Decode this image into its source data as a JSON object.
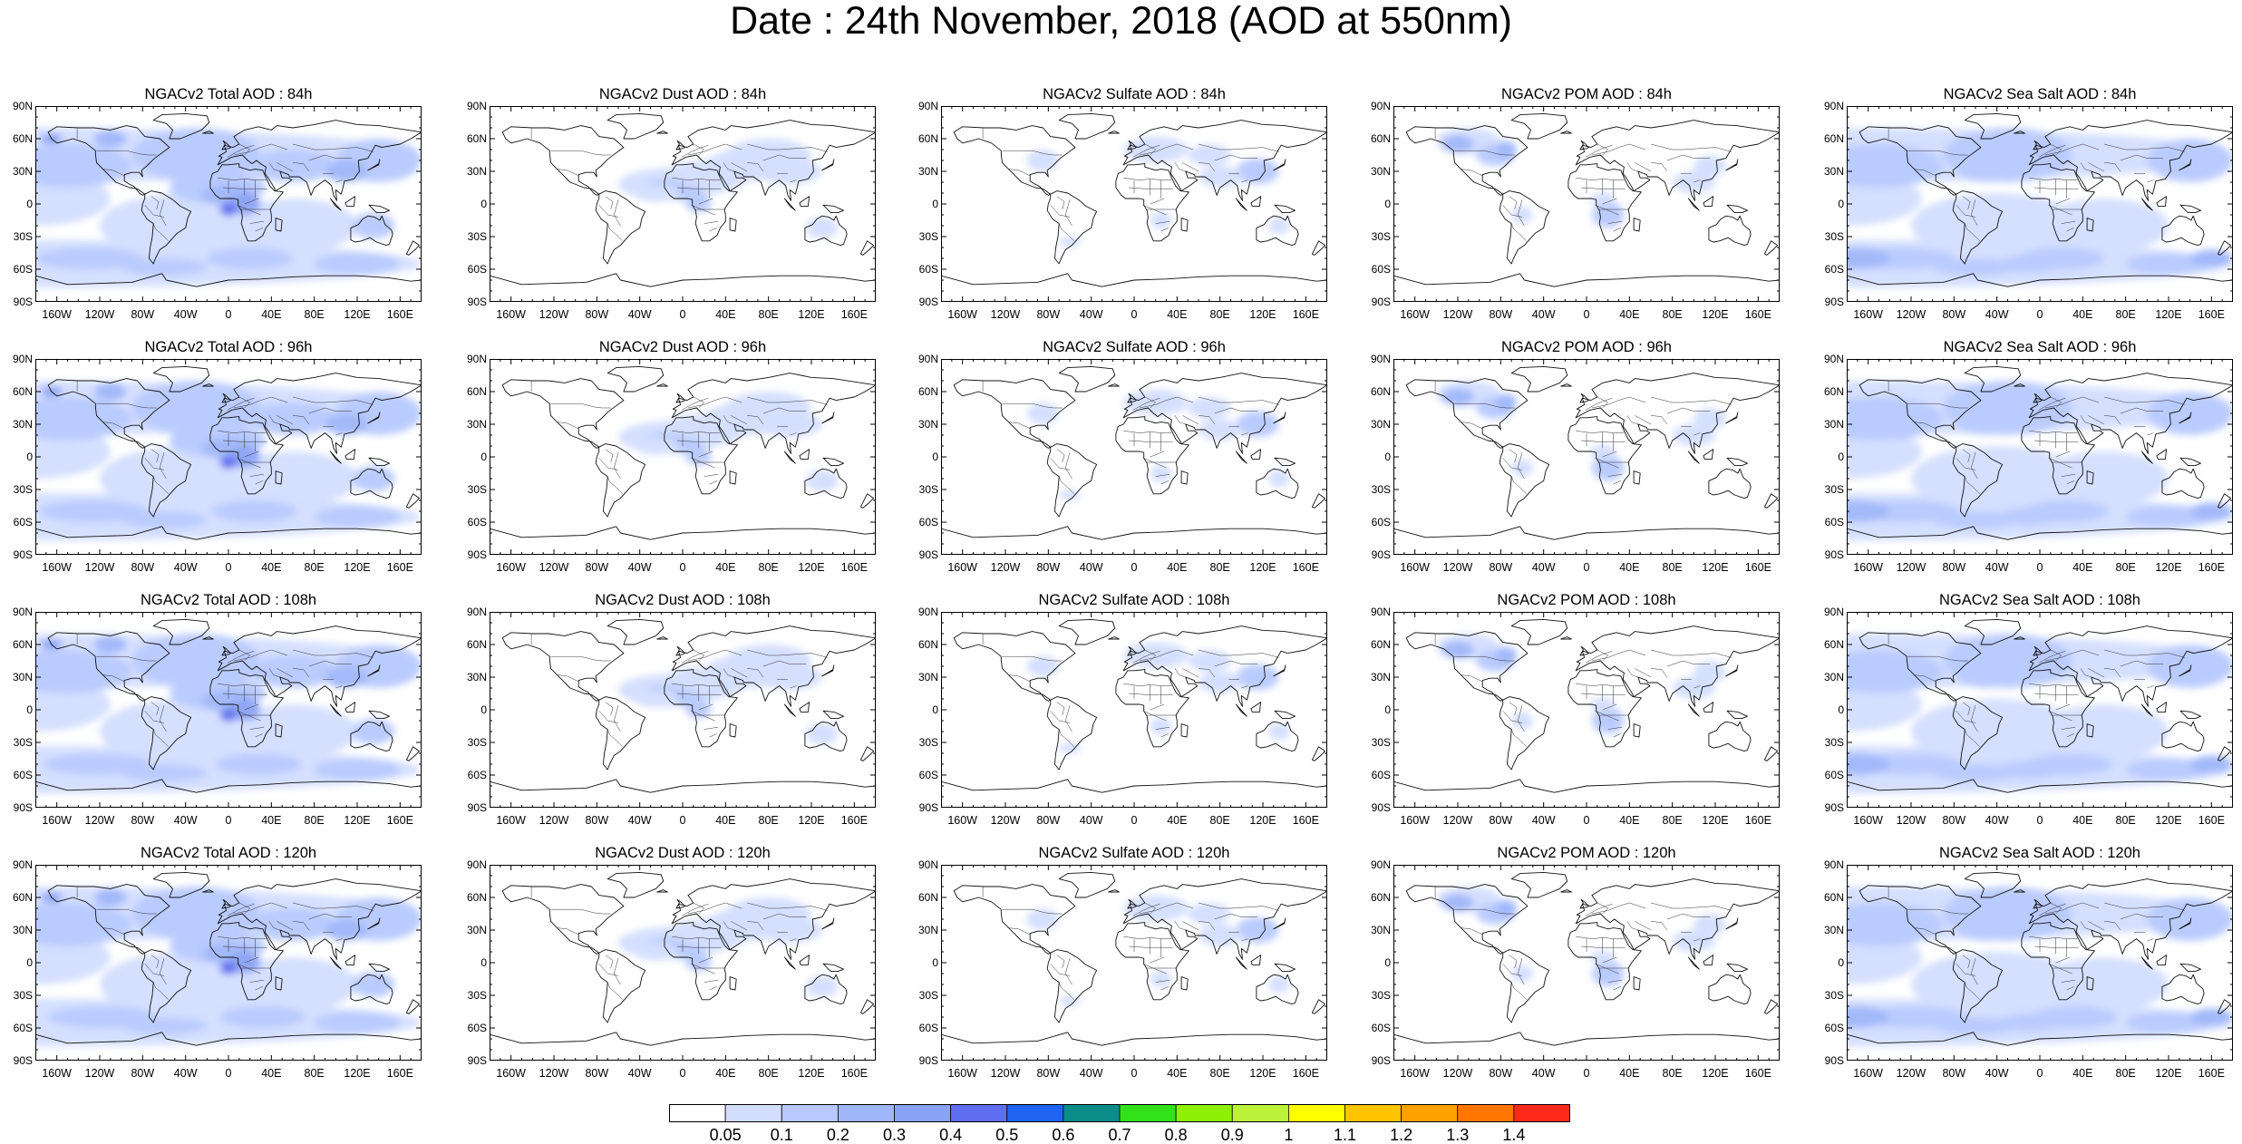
{
  "title": "Date : 24th November, 2018 (AOD at 550nm)",
  "panel_titles": [
    [
      "NGACv2 Total AOD : 84h",
      "NGACv2 Dust AOD : 84h",
      "NGACv2 Sulfate AOD : 84h",
      "NGACv2 POM AOD : 84h",
      "NGACv2 Sea Salt AOD : 84h"
    ],
    [
      "NGACv2 Total AOD : 96h",
      "NGACv2 Dust AOD : 96h",
      "NGACv2 Sulfate AOD : 96h",
      "NGACv2 POM AOD : 96h",
      "NGACv2 Sea Salt AOD : 96h"
    ],
    [
      "NGACv2 Total AOD : 108h",
      "NGACv2 Dust AOD : 108h",
      "NGACv2 Sulfate AOD : 108h",
      "NGACv2 POM AOD : 108h",
      "NGACv2 Sea Salt AOD : 108h"
    ],
    [
      "NGACv2 Total AOD : 120h",
      "NGACv2 Dust AOD : 120h",
      "NGACv2 Sulfate AOD : 120h",
      "NGACv2 POM AOD : 120h",
      "NGACv2 Sea Salt  AOD : 120h"
    ]
  ],
  "lat_ticks": [
    "90N",
    "60N",
    "30N",
    "0",
    "30S",
    "60S",
    "90S"
  ],
  "lon_ticks": [
    "160W",
    "120W",
    "80W",
    "40W",
    "0",
    "40E",
    "80E",
    "120E",
    "160E"
  ],
  "lat_values": [
    90,
    60,
    30,
    0,
    -30,
    -60,
    -90
  ],
  "lon_values": [
    -160,
    -120,
    -80,
    -40,
    0,
    40,
    80,
    120,
    160
  ],
  "colorbar": {
    "labels": [
      "0.05",
      "0.1",
      "0.2",
      "0.3",
      "0.4",
      "0.5",
      "0.6",
      "0.7",
      "0.8",
      "0.9",
      "1",
      "1.1",
      "1.2",
      "1.3",
      "1.4"
    ],
    "colors": [
      "#ffffff",
      "#d3deff",
      "#b7c9ff",
      "#9fb6f9",
      "#8aa2f5",
      "#5f6ef0",
      "#1e63f2",
      "#0b8d8a",
      "#33e11a",
      "#8ff007",
      "#bdf23b",
      "#ffff00",
      "#ffc400",
      "#ffa200",
      "#ff7700",
      "#ff2a1a"
    ]
  }
}
